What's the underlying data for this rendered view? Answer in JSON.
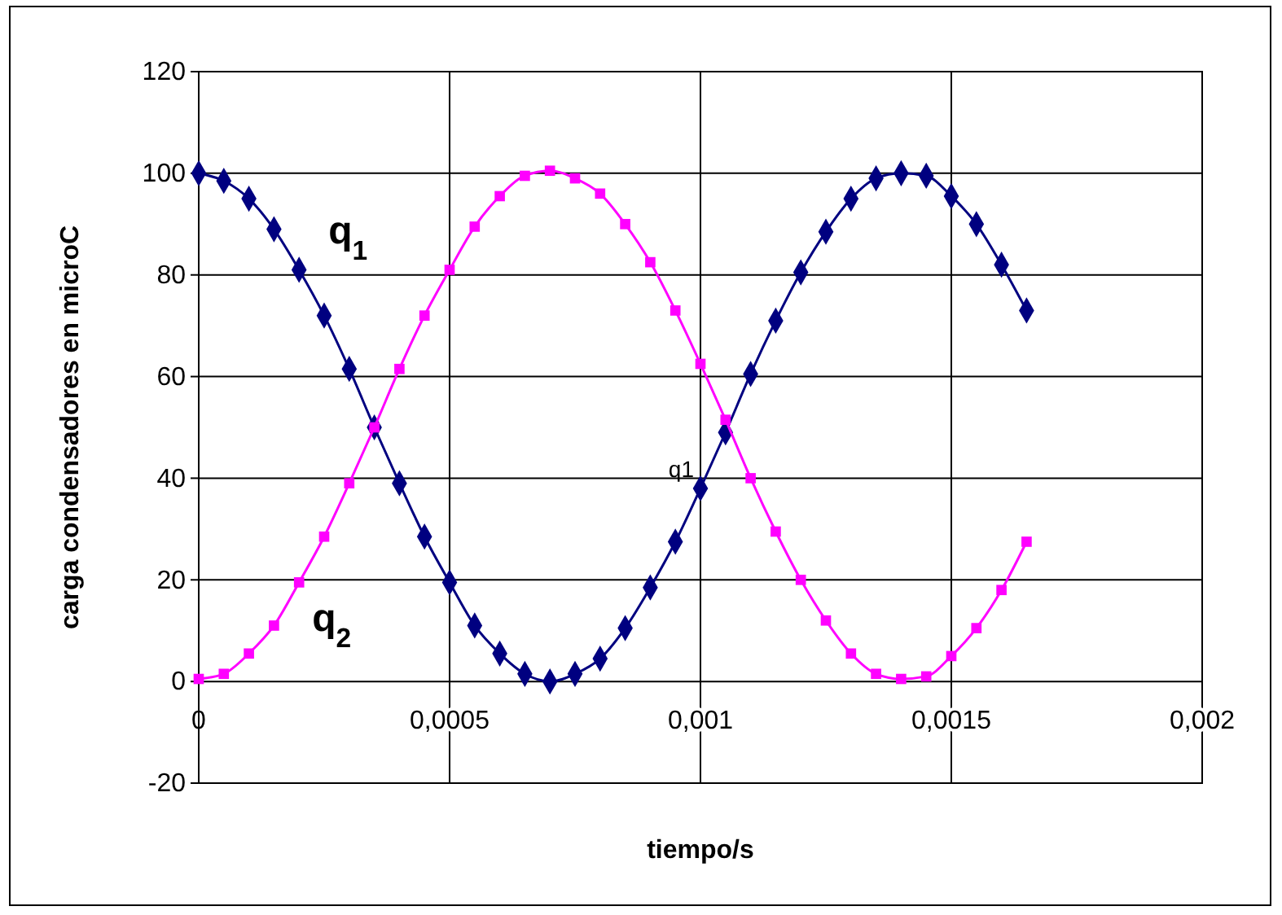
{
  "chart_data": {
    "type": "line",
    "xlabel": "tiempo/s",
    "ylabel": "carga condensadores en microC",
    "xlim": [
      0,
      0.002
    ],
    "xticks": [
      0,
      {
        "value": 0.0005,
        "label": "0,0005"
      },
      {
        "value": 0.001,
        "label": "0,001"
      },
      {
        "value": 0.0015,
        "label": "0,0015"
      },
      {
        "value": 0.002,
        "label": "0,002"
      }
    ],
    "ylim": [
      -20,
      120
    ],
    "yticks": [
      -20,
      0,
      20,
      40,
      60,
      80,
      100,
      120
    ],
    "grid": true,
    "legend": false,
    "line_style": "solid",
    "x": [
      0,
      5e-05,
      0.0001,
      0.00015,
      0.0002,
      0.00025,
      0.0003,
      0.00035,
      0.0004,
      0.00045,
      0.0005,
      0.00055,
      0.0006,
      0.00065,
      0.0007,
      0.00075,
      0.0008,
      0.00085,
      0.0009,
      0.00095,
      0.001,
      0.00105,
      0.0011,
      0.00115,
      0.0012,
      0.00125,
      0.0013,
      0.00135,
      0.0014,
      0.00145,
      0.0015,
      0.00155,
      0.0016,
      0.00165
    ],
    "series": [
      {
        "name": "q$_{1}$",
        "color": "#000080",
        "marker": "diamond",
        "values": [
          100,
          98.5,
          95,
          89,
          81,
          72,
          61.5,
          50,
          39,
          28.5,
          19.5,
          11,
          5.5,
          1.5,
          0,
          1.5,
          4.5,
          10.5,
          18.5,
          27.5,
          38,
          49,
          60.5,
          71,
          80.5,
          88.5,
          95,
          99,
          100,
          99.5,
          95.5,
          90,
          82,
          73
        ]
      },
      {
        "name": "q$_{2}$",
        "color": "#ff00ff",
        "marker": "square",
        "values": [
          0.5,
          1.5,
          5.5,
          11,
          19.5,
          28.5,
          39,
          50,
          61.5,
          72,
          81,
          89.5,
          95.5,
          99.5,
          100.5,
          99,
          96,
          90,
          82.5,
          73,
          62.5,
          51.5,
          40,
          29.5,
          20,
          12,
          5.5,
          1.5,
          0.5,
          1,
          5,
          10.5,
          18,
          27.5
        ]
      }
    ],
    "annotations": [
      {
        "text": "q1",
        "x": 0.001,
        "y": 38
      }
    ]
  }
}
